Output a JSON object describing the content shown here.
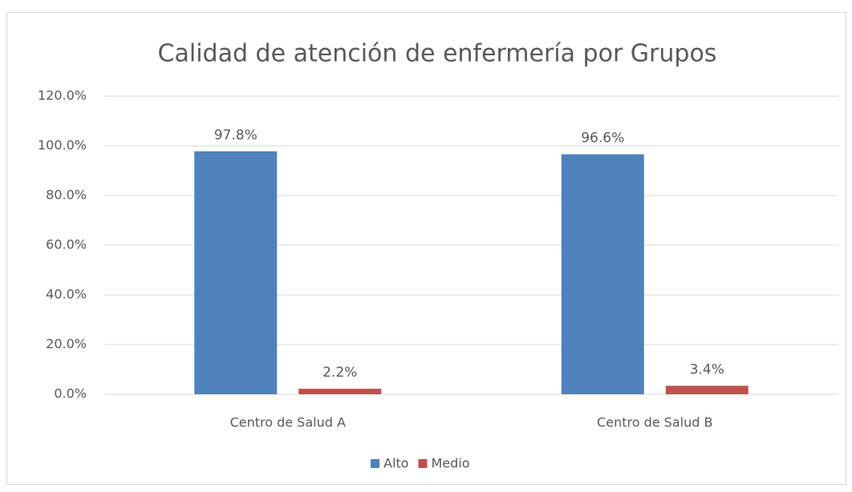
{
  "chart_data": {
    "type": "bar",
    "title": "Calidad de atención de enfermería por Grupos",
    "categories": [
      "Centro de Salud A",
      "Centro de Salud B"
    ],
    "series": [
      {
        "name": "Alto",
        "color": "#4f81bd",
        "values": [
          97.8,
          96.6
        ],
        "value_labels": [
          "97.8%",
          "96.6%"
        ]
      },
      {
        "name": "Medio",
        "color": "#c0504d",
        "values": [
          2.2,
          3.4
        ],
        "value_labels": [
          "2.2%",
          "3.4%"
        ]
      }
    ],
    "ylim": [
      0,
      120
    ],
    "yticks": [
      {
        "value": 0,
        "label": "0.0%"
      },
      {
        "value": 20,
        "label": "20.0%"
      },
      {
        "value": 40,
        "label": "40.0%"
      },
      {
        "value": 60,
        "label": "60.0%"
      },
      {
        "value": 80,
        "label": "80.0%"
      },
      {
        "value": 100,
        "label": "100.0%"
      },
      {
        "value": 120,
        "label": "120.0%"
      }
    ],
    "grid": true,
    "legend": "bottom"
  }
}
